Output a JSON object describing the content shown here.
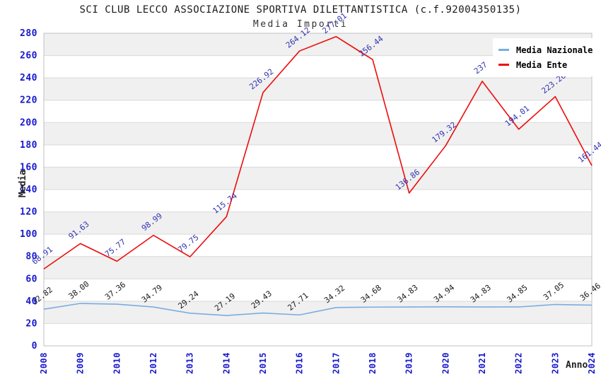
{
  "header": {
    "title": "SCI CLUB LECCO ASSOCIAZIONE SPORTIVA DILETTANTISTICA (c.f.92004350135)",
    "subtitle": "Media Importi"
  },
  "axes": {
    "y_title": "Media",
    "x_title": "Anno",
    "y_ticks": [
      0,
      20,
      40,
      60,
      80,
      100,
      120,
      140,
      160,
      180,
      200,
      220,
      240,
      260,
      280
    ]
  },
  "legend": {
    "position": "top-right",
    "items": [
      {
        "label": "Media Nazionale",
        "color": "#7aade0"
      },
      {
        "label": "Media Ente",
        "color": "#ee0b0b"
      }
    ]
  },
  "colors": {
    "background": "#ffffff",
    "band": "#f0f0f0",
    "grid": "#d9d9d9",
    "border": "#c0c0c0",
    "tick_label": "#1818cc",
    "nazionale_line": "#7aade0",
    "ente_line": "#ee0b0b",
    "nazionale_label": "#1a1a1a",
    "ente_label": "#3333b3"
  },
  "chart_data": {
    "type": "line",
    "title": "SCI CLUB LECCO ASSOCIAZIONE SPORTIVA DILETTANTISTICA (c.f.92004350135)",
    "subtitle": "Media Importi",
    "xlabel": "Anno",
    "ylabel": "Media",
    "ylim": [
      0,
      280
    ],
    "y_step": 20,
    "grid": true,
    "plot_bands": "alternating light-gray horizontal bands every 20 units",
    "legend_position": "top-right",
    "categories": [
      "2008",
      "2009",
      "2010",
      "2012",
      "2013",
      "2014",
      "2015",
      "2016",
      "2017",
      "2018",
      "2019",
      "2020",
      "2021",
      "2022",
      "2023",
      "2024"
    ],
    "series": [
      {
        "id": "nazionale",
        "name": "Media Nazionale",
        "color": "#7aade0",
        "label_color": "#1a1a1a",
        "values": [
          32.82,
          38.0,
          37.36,
          34.79,
          29.24,
          27.19,
          29.43,
          27.71,
          34.32,
          34.68,
          34.83,
          34.94,
          34.83,
          34.85,
          37.05,
          36.46
        ],
        "labels": [
          "32.82",
          "38.00",
          "37.36",
          "34.79",
          "29.24",
          "27.19",
          "29.43",
          "27.71",
          "34.32",
          "34.68",
          "34.83",
          "34.94",
          "34.83",
          "34.85",
          "37.05",
          "36.46"
        ]
      },
      {
        "id": "ente",
        "name": "Media Ente",
        "color": "#ee0b0b",
        "label_color": "#3333b3",
        "values": [
          68.91,
          91.63,
          75.77,
          98.99,
          79.75,
          115.74,
          226.92,
          264.12,
          277.01,
          256.44,
          136.86,
          179.32,
          237,
          194.01,
          223.26,
          161.44
        ],
        "labels": [
          "68.91",
          "91.63",
          "75.77",
          "98.99",
          "79.75",
          "115.74",
          "226.92",
          "264.12",
          "277.01",
          "256.44",
          "136.86",
          "179.32",
          "237",
          "194.01",
          "223.26",
          "161.44"
        ]
      }
    ],
    "notes": "2021 Media Ente label is partially hidden behind the legend box; value ~237 estimated from gridlines. 2024 labels are clipped at the right image edge."
  }
}
